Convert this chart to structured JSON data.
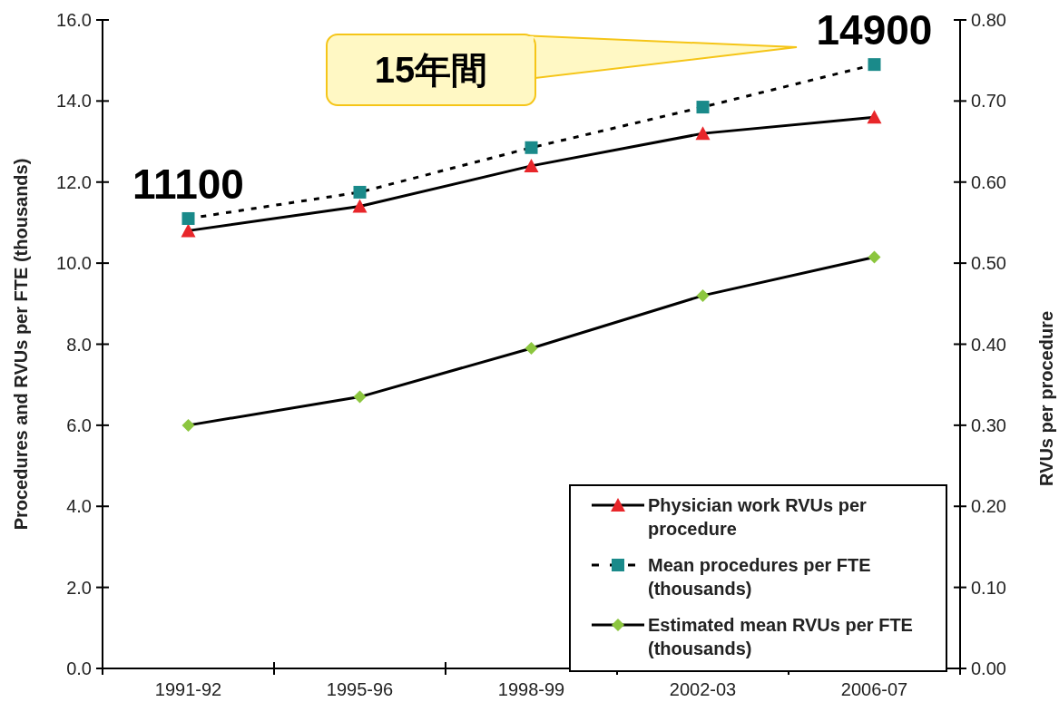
{
  "chart_data": {
    "type": "line",
    "ylabel": "Procedures and RVUs per FTE (thousands)",
    "y2label": "RVUs per procedure",
    "categories": [
      "1991-92",
      "1995-96",
      "1998-99",
      "2002-03",
      "2006-07"
    ],
    "series": [
      {
        "name": "Physician work RVUs per procedure",
        "color": "#e8262a",
        "axis": "y2",
        "marker": "triangle",
        "line_style": "solid",
        "values": [
          0.54,
          0.57,
          0.62,
          0.66,
          0.68
        ]
      },
      {
        "name": "Mean procedures per FTE (thousands)",
        "color": "#1a8a8a",
        "marker": "square",
        "line_style": "dotted",
        "values": [
          11.1,
          11.75,
          12.85,
          13.85,
          14.9
        ]
      },
      {
        "name": "Estimated mean RVUs per FTE (thousands)",
        "color": "#8cc63f",
        "marker": "diamond",
        "line_style": "solid",
        "values": [
          6.0,
          6.7,
          7.9,
          9.2,
          10.15
        ]
      }
    ],
    "ylim": [
      0,
      16
    ],
    "yticks": [
      {
        "value": 0,
        "label": "0.0"
      },
      {
        "value": 2,
        "label": "2.0"
      },
      {
        "value": 4,
        "label": "4.0"
      },
      {
        "value": 6,
        "label": "6.0"
      },
      {
        "value": 8,
        "label": "8.0"
      },
      {
        "value": 10,
        "label": "10.0"
      },
      {
        "value": 12,
        "label": "12.0"
      },
      {
        "value": 14,
        "label": "14.0"
      },
      {
        "value": 16,
        "label": "16.0"
      }
    ],
    "y2lim": [
      0,
      0.8
    ],
    "y2ticks": [
      {
        "value": 0,
        "label": "0.00"
      },
      {
        "value": 0.1,
        "label": "0.10"
      },
      {
        "value": 0.2,
        "label": "0.20"
      },
      {
        "value": 0.3,
        "label": "0.30"
      },
      {
        "value": 0.4,
        "label": "0.40"
      },
      {
        "value": 0.5,
        "label": "0.50"
      },
      {
        "value": 0.6,
        "label": "0.60"
      },
      {
        "value": 0.7,
        "label": "0.70"
      },
      {
        "value": 0.8,
        "label": "0.80"
      }
    ],
    "annotations": [
      {
        "text": "11100",
        "x": "1991-92",
        "y": 11.1
      },
      {
        "text": "14900",
        "x": "2006-07",
        "y": 14.9
      },
      "15年間"
    ],
    "legend": "bottom right",
    "grid": false
  }
}
